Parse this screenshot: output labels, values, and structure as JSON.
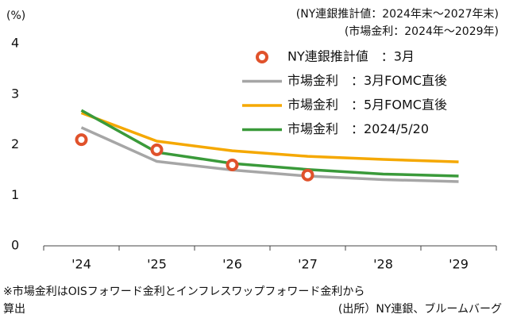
{
  "chart_data": {
    "type": "line",
    "y_unit_label": "(%)",
    "notes": [
      "(NY連銀推計値：2024年末～2027年末)",
      "(市場金利：2024年～2029年)"
    ],
    "footnotes": [
      "※市場金利はOISフォワード金利とインフレスワップフォワード金利から",
      "算出"
    ],
    "source": "(出所）NY連銀、ブルームバーグ",
    "categories": [
      "'24",
      "'25",
      "'26",
      "'27",
      "'28",
      "'29"
    ],
    "series": [
      {
        "name": "NY連銀推計値　：3月",
        "style": "marker",
        "color": "#e0522b",
        "values": [
          2.1,
          1.9,
          1.6,
          1.4,
          null,
          null
        ]
      },
      {
        "name": "市場金利　：3月FOMC直後",
        "style": "line",
        "color": "#a6a6a6",
        "values": [
          2.34,
          1.67,
          1.5,
          1.38,
          1.31,
          1.27
        ]
      },
      {
        "name": "市場金利　：5月FOMC直後",
        "style": "line",
        "color": "#f5a800",
        "values": [
          2.63,
          2.07,
          1.88,
          1.77,
          1.71,
          1.66
        ]
      },
      {
        "name": "市場金利　：2024/5/20",
        "style": "line",
        "color": "#3a9a3a",
        "values": [
          2.68,
          1.85,
          1.63,
          1.51,
          1.42,
          1.38
        ]
      }
    ],
    "ylim": [
      0,
      4
    ],
    "yticks": [
      0,
      1,
      2,
      3,
      4
    ],
    "grid": false,
    "legend": "upper right"
  }
}
